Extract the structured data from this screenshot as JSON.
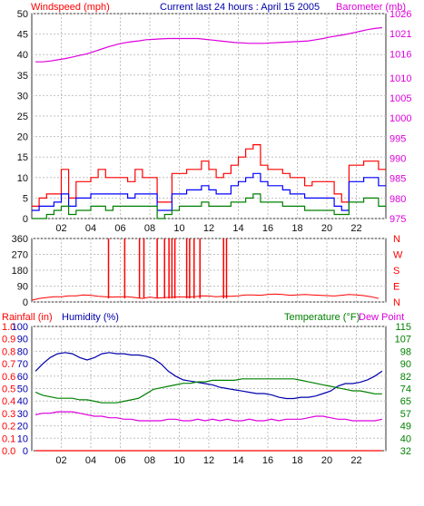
{
  "title": "Current last 24 hours : April 15 2005",
  "colors": {
    "background": "#ffffff",
    "plot_bg": "#ffffff",
    "grid": "#c0c0c0",
    "axis_dark": "#303030",
    "tick_text": "#101010",
    "gust": "#ff0000",
    "avg_wind": "#0000ff",
    "min_wind": "#008000",
    "barometer": "#dd00dd",
    "wind_dir": "#ff0000",
    "rain": "#ff0000",
    "humidity": "#0000aa",
    "temperature": "#008000",
    "dew_point": "#dd00dd"
  },
  "chart_data": [
    {
      "type": "line",
      "title": "Current last 24 hours : April 15 2005",
      "ylabel": "Windspeed (mph)",
      "y2label": "Barometer (mb)",
      "xtick_labels": [
        "02",
        "04",
        "06",
        "08",
        "10",
        "12",
        "14",
        "16",
        "18",
        "20",
        "22"
      ],
      "xticks_hours": [
        2,
        4,
        6,
        8,
        10,
        12,
        14,
        16,
        18,
        20,
        22
      ],
      "xlim_hours": [
        0,
        24
      ],
      "ylim": [
        0,
        50
      ],
      "yticks": [
        0,
        5,
        10,
        15,
        20,
        25,
        30,
        35,
        40,
        45,
        50
      ],
      "y2lim": [
        975,
        1026
      ],
      "y2ticks": [
        975,
        980,
        985,
        990,
        995,
        1000,
        1005,
        1010,
        1016,
        1021,
        1026
      ],
      "grid": true,
      "series": [
        {
          "key": "gust",
          "values": [
            3,
            5,
            6,
            6,
            12,
            5,
            9,
            9,
            10,
            12,
            10,
            10,
            10,
            9,
            12,
            10,
            10,
            4,
            4,
            11,
            11,
            12,
            12,
            14,
            12,
            10,
            11,
            13,
            15,
            17,
            18,
            13,
            12,
            12,
            11,
            10,
            10,
            8,
            9,
            9,
            9,
            6,
            4,
            13,
            13,
            14,
            14,
            12
          ]
        },
        {
          "key": "avg",
          "values": [
            2,
            3,
            3,
            4,
            6,
            3,
            5,
            5,
            6,
            6,
            6,
            6,
            6,
            5,
            6,
            6,
            6,
            2,
            2,
            6,
            6,
            7,
            7,
            8,
            7,
            6,
            6,
            8,
            9,
            10,
            11,
            9,
            8,
            8,
            7,
            6,
            6,
            5,
            5,
            5,
            5,
            3,
            2,
            9,
            9,
            10,
            10,
            8
          ]
        },
        {
          "key": "min",
          "values": [
            0,
            0,
            1,
            2,
            3,
            1,
            2,
            2,
            3,
            3,
            2,
            3,
            3,
            3,
            3,
            3,
            3,
            0,
            1,
            2,
            3,
            3,
            3,
            4,
            3,
            3,
            3,
            4,
            4,
            5,
            6,
            4,
            4,
            4,
            3,
            3,
            3,
            2,
            2,
            2,
            2,
            1,
            1,
            4,
            4,
            5,
            5,
            3
          ]
        },
        {
          "key": "barometer",
          "values": [
            1014,
            1014,
            1014.2,
            1014.5,
            1014.8,
            1015.2,
            1015.6,
            1016,
            1016.6,
            1017.2,
            1017.8,
            1018.3,
            1018.7,
            1019,
            1019.2,
            1019.5,
            1019.6,
            1019.7,
            1019.8,
            1019.8,
            1019.8,
            1019.8,
            1019.8,
            1019.6,
            1019.4,
            1019.2,
            1019,
            1018.8,
            1018.7,
            1018.6,
            1018.6,
            1018.6,
            1018.7,
            1018.8,
            1018.9,
            1019,
            1019.1,
            1019.2,
            1019.5,
            1019.8,
            1020.2,
            1020.5,
            1020.8,
            1021.2,
            1021.6,
            1022,
            1022.3,
            1022.5
          ]
        }
      ]
    },
    {
      "type": "line",
      "ylabel": "Wind direction",
      "ylim": [
        0,
        360
      ],
      "yticks": [
        0,
        90,
        180,
        270,
        360
      ],
      "y2tick_labels": [
        "N",
        "E",
        "S",
        "W",
        "N"
      ],
      "x_hours_step": 0.5,
      "values": [
        10,
        20,
        25,
        30,
        30,
        35,
        35,
        40,
        38,
        32,
        30,
        28,
        30,
        30,
        25,
        20,
        28,
        22,
        25,
        26,
        30,
        28,
        30,
        35,
        34,
        30,
        33,
        32,
        35,
        40,
        40,
        38,
        42,
        45,
        42,
        38,
        40,
        42,
        40,
        38,
        36,
        34,
        38,
        42,
        40,
        36,
        30,
        20
      ],
      "spikes_hours": [
        5.2,
        6.3,
        7.3,
        7.6,
        8.5,
        9.0,
        9.3,
        9.5,
        9.7,
        10.5,
        10.7,
        11.0,
        11.4,
        13.0,
        13.2
      ]
    },
    {
      "type": "line",
      "ylabel": "Rainfall (in)",
      "ylabel2": "Humidity (%)",
      "y2label": "Temperature (°F)",
      "y2label2": "Dew Point",
      "rain_ylim": [
        0,
        1.0
      ],
      "rain_yticks": [
        "0.0",
        "0.1",
        "0.2",
        "0.3",
        "0.4",
        "0.5",
        "0.6",
        "0.7",
        "0.8",
        "0.9",
        "1.0"
      ],
      "humidity_ylim": [
        0,
        100
      ],
      "humidity_yticks": [
        "0",
        "10",
        "20",
        "30",
        "40",
        "50",
        "60",
        "70",
        "80",
        "90",
        "100"
      ],
      "temp_ylim": [
        32,
        115
      ],
      "temp_yticks": [
        "32",
        "40",
        "49",
        "57",
        "65",
        "74",
        "82",
        "90",
        "98",
        "107",
        "115"
      ],
      "series": [
        {
          "key": "rain",
          "values": [
            0,
            0,
            0,
            0,
            0,
            0,
            0,
            0,
            0,
            0,
            0,
            0,
            0,
            0,
            0,
            0,
            0,
            0,
            0,
            0,
            0,
            0,
            0,
            0,
            0,
            0,
            0,
            0,
            0,
            0,
            0,
            0,
            0,
            0,
            0,
            0,
            0,
            0,
            0,
            0,
            0,
            0,
            0,
            0,
            0,
            0,
            0,
            0
          ]
        },
        {
          "key": "humidity",
          "values": [
            64,
            70,
            75,
            78,
            79,
            78,
            75,
            73,
            75,
            78,
            79,
            78,
            78,
            77,
            77,
            76,
            74,
            70,
            64,
            60,
            57,
            56,
            55,
            54,
            53,
            51,
            50,
            49,
            48,
            47,
            46,
            46,
            45,
            43,
            42,
            42,
            43,
            43,
            44,
            46,
            48,
            52,
            54,
            54,
            55,
            57,
            60,
            64
          ]
        },
        {
          "key": "temperature",
          "values": [
            71,
            69,
            68,
            67,
            67,
            67,
            66,
            66,
            65,
            64,
            64,
            64,
            65,
            66,
            67,
            70,
            73,
            74,
            75,
            76,
            77,
            77,
            78,
            78,
            79,
            79,
            79,
            79,
            80,
            80,
            80,
            80,
            80,
            80,
            80,
            80,
            79,
            78,
            77,
            76,
            75,
            74,
            73,
            72,
            72,
            71,
            70,
            70
          ]
        },
        {
          "key": "dew_point",
          "values": [
            56,
            57,
            57,
            58,
            58,
            58,
            57,
            56,
            55,
            55,
            54,
            54,
            53,
            53,
            52,
            52,
            52,
            52,
            53,
            53,
            52,
            52,
            53,
            52,
            53,
            52,
            53,
            52,
            52,
            53,
            52,
            52,
            53,
            52,
            53,
            53,
            53,
            54,
            55,
            55,
            54,
            53,
            53,
            52,
            52,
            52,
            52,
            53
          ]
        }
      ]
    }
  ]
}
